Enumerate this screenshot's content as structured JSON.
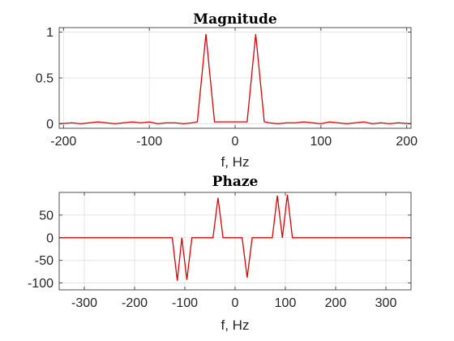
{
  "chart_data": [
    {
      "type": "line",
      "title": "Magnitude",
      "xlabel": "f, Hz",
      "ylabel": "",
      "xlim": [
        -205,
        205
      ],
      "ylim": [
        -0.05,
        1.05
      ],
      "xticks": [
        -200,
        -100,
        0,
        100,
        200
      ],
      "xtick_labels": [
        "-200",
        "-100",
        "0",
        "100",
        "200"
      ],
      "yticks": [
        0,
        0.5,
        1
      ],
      "ytick_labels": [
        "0",
        "0.5",
        "1"
      ],
      "grid": true,
      "color": "#dd0000",
      "series": [
        {
          "x": [
            -205,
            -190,
            -180,
            -170,
            -160,
            -150,
            -140,
            -130,
            -120,
            -110,
            -100,
            -90,
            -80,
            -70,
            -60,
            -50,
            -44,
            -34,
            -24,
            14,
            24,
            34,
            40,
            50,
            60,
            70,
            80,
            90,
            100,
            110,
            120,
            130,
            140,
            150,
            160,
            170,
            180,
            190,
            205
          ],
          "y": [
            0.0,
            0.01,
            0.0,
            0.01,
            0.02,
            0.01,
            0.0,
            0.01,
            0.02,
            0.01,
            0.02,
            0.0,
            0.01,
            0.01,
            0.0,
            0.01,
            0.02,
            0.98,
            0.02,
            0.02,
            0.98,
            0.02,
            0.01,
            0.0,
            0.01,
            0.01,
            0.02,
            0.01,
            0.0,
            0.02,
            0.01,
            0.0,
            0.01,
            0.02,
            0.0,
            0.01,
            0.0,
            0.01,
            0.0
          ]
        }
      ]
    },
    {
      "type": "line",
      "title": "Phaze",
      "xlabel": "f, Hz",
      "ylabel": "",
      "xlim": [
        -350,
        350
      ],
      "ylim": [
        -115,
        100
      ],
      "xticks": [
        -300,
        -200,
        -100,
        0,
        100,
        200,
        300
      ],
      "xtick_labels": [
        "-300",
        "-200",
        "-100",
        "0",
        "100",
        "200",
        "300"
      ],
      "yticks": [
        50,
        0,
        -50,
        -100
      ],
      "ytick_labels": [
        "50",
        "0",
        "-50",
        "-100"
      ],
      "grid": true,
      "color": "#dd0000",
      "series": [
        {
          "x": [
            -350,
            -125,
            -115,
            -106,
            -96,
            -86,
            -44,
            -34,
            -24,
            14,
            24,
            34,
            74,
            84,
            94,
            104,
            114,
            350
          ],
          "y": [
            0,
            0,
            -95,
            0,
            -93,
            0,
            0,
            88,
            0,
            0,
            -88,
            0,
            0,
            93,
            0,
            95,
            0,
            0
          ]
        }
      ]
    }
  ]
}
